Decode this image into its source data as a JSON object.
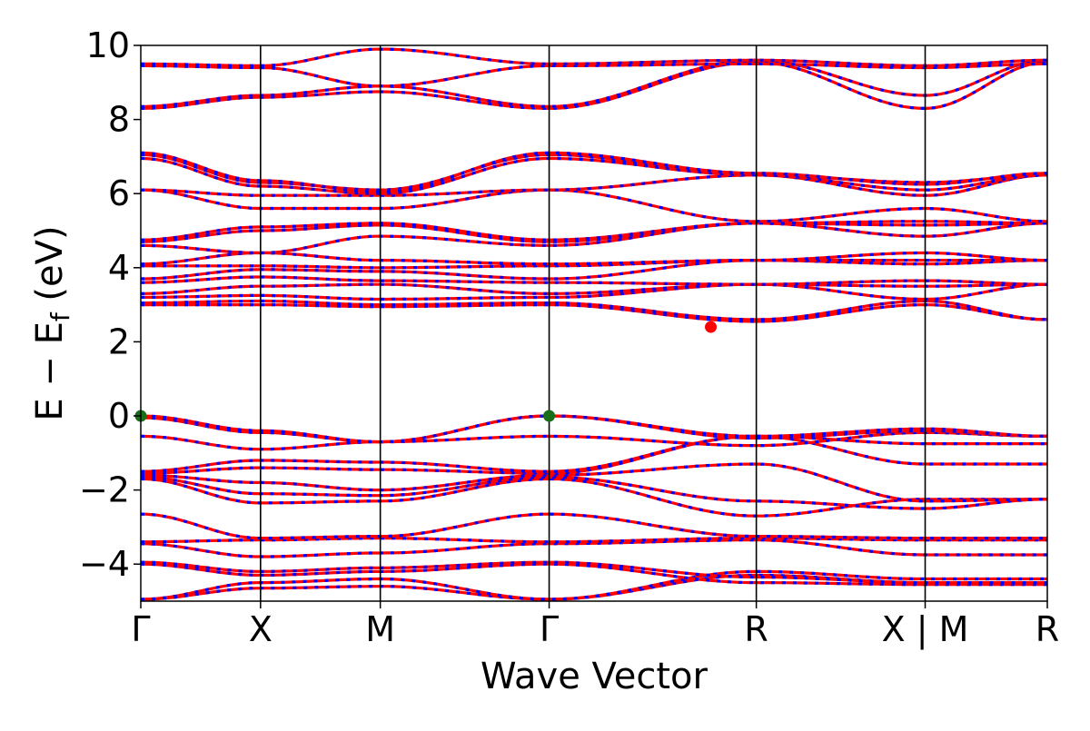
{
  "chart_data": {
    "type": "line",
    "title": "",
    "xlabel": "Wave Vector",
    "ylabel": "E − E",
    "ylabel_sub": "f",
    "ylabel_unit": " (eV)",
    "ylim": [
      -5,
      10
    ],
    "yticks": [
      -4,
      -2,
      0,
      2,
      4,
      6,
      8,
      10
    ],
    "ytick_labels": [
      "−4",
      "−2",
      "0",
      "2",
      "4",
      "6",
      "8",
      "10"
    ],
    "xlim": [
      0,
      7.57
    ],
    "kpath": [
      {
        "label": "Γ",
        "x": 0.0
      },
      {
        "label": "X",
        "x": 1.0
      },
      {
        "label": "M",
        "x": 2.0
      },
      {
        "label": "Γ",
        "x": 3.41
      },
      {
        "label": "R",
        "x": 5.14
      },
      {
        "label": "X | M",
        "x": 6.55
      },
      {
        "label": "R",
        "x": 7.57
      }
    ],
    "series_colors": {
      "spin_up": "#ff0000",
      "spin_down": "#0000ff"
    },
    "band_style": "spin-up (red, solid) overlaid with spin-down (blue, dashed); bands are degenerate",
    "bands": [
      {
        "y": [
          -4.95,
          -4.65,
          -4.6,
          -4.95,
          -4.3,
          -4.5,
          -4.5
        ]
      },
      {
        "y": [
          -4.95,
          -4.5,
          -4.4,
          -4.95,
          -4.2,
          -4.4,
          -4.4
        ]
      },
      {
        "y": [
          -4.0,
          -4.3,
          -4.2,
          -4.0,
          -4.5,
          -4.55,
          -4.55
        ]
      },
      {
        "y": [
          -3.95,
          -4.2,
          -4.1,
          -3.95,
          -4.35,
          -4.5,
          -4.5
        ]
      },
      {
        "y": [
          -3.45,
          -3.8,
          -3.7,
          -3.45,
          -3.35,
          -3.75,
          -3.75
        ]
      },
      {
        "y": [
          -3.4,
          -3.35,
          -3.3,
          -3.4,
          -3.3,
          -3.35,
          -3.35
        ]
      },
      {
        "y": [
          -2.65,
          -3.3,
          -3.25,
          -2.65,
          -3.25,
          -3.3,
          -3.3
        ]
      },
      {
        "y": [
          -1.7,
          -2.35,
          -2.3,
          -1.7,
          -2.7,
          -2.25,
          -2.25
        ]
      },
      {
        "y": [
          -1.65,
          -2.1,
          -2.15,
          -1.65,
          -2.3,
          -2.5,
          -2.25
        ]
      },
      {
        "y": [
          -1.6,
          -1.8,
          -2.0,
          -1.6,
          -1.3,
          -2.3,
          -2.25
        ]
      },
      {
        "y": [
          -1.55,
          -1.4,
          -1.45,
          -1.55,
          -0.55,
          -1.3,
          -1.3
        ]
      },
      {
        "y": [
          -1.5,
          -1.2,
          -1.25,
          -1.5,
          -0.55,
          -0.75,
          -0.75
        ]
      },
      {
        "y": [
          -0.55,
          -0.9,
          -0.7,
          -0.55,
          -0.8,
          -0.45,
          -0.55
        ]
      },
      {
        "y": [
          -0.05,
          -0.45,
          -0.7,
          0.0,
          -0.6,
          -0.4,
          -0.55
        ]
      },
      {
        "y": [
          0.0,
          -0.4,
          -0.7,
          0.0,
          -0.55,
          -0.35,
          -0.55
        ]
      },
      {
        "y": [
          3.0,
          3.0,
          2.95,
          3.0,
          2.55,
          3.0,
          2.6
        ]
      },
      {
        "y": [
          3.05,
          3.1,
          3.0,
          3.05,
          2.6,
          3.1,
          2.6
        ]
      },
      {
        "y": [
          3.2,
          3.25,
          3.15,
          3.2,
          3.55,
          3.15,
          3.55
        ]
      },
      {
        "y": [
          3.3,
          3.5,
          3.55,
          3.3,
          3.55,
          3.5,
          3.55
        ]
      },
      {
        "y": [
          3.6,
          3.75,
          3.65,
          3.6,
          3.55,
          3.65,
          3.55
        ]
      },
      {
        "y": [
          3.7,
          3.95,
          3.9,
          3.7,
          4.2,
          4.1,
          4.2
        ]
      },
      {
        "y": [
          4.05,
          4.05,
          4.0,
          4.05,
          4.2,
          4.2,
          4.2
        ]
      },
      {
        "y": [
          4.1,
          4.4,
          4.2,
          4.1,
          4.2,
          4.4,
          4.2
        ]
      },
      {
        "y": [
          4.6,
          4.4,
          4.85,
          4.6,
          5.2,
          4.85,
          5.2
        ]
      },
      {
        "y": [
          4.7,
          5.0,
          5.15,
          4.7,
          5.2,
          5.15,
          5.2
        ]
      },
      {
        "y": [
          4.75,
          5.1,
          5.2,
          4.75,
          5.2,
          5.25,
          5.2
        ]
      },
      {
        "y": [
          6.1,
          5.6,
          5.6,
          6.1,
          5.25,
          5.6,
          5.25
        ]
      },
      {
        "y": [
          6.1,
          5.95,
          5.95,
          6.1,
          6.5,
          5.95,
          6.5
        ]
      },
      {
        "y": [
          6.95,
          6.2,
          6.0,
          6.95,
          6.5,
          6.1,
          6.5
        ]
      },
      {
        "y": [
          7.05,
          6.3,
          6.1,
          7.05,
          6.5,
          6.3,
          6.5
        ]
      },
      {
        "y": [
          7.1,
          6.35,
          6.05,
          7.1,
          6.55,
          6.25,
          6.55
        ]
      },
      {
        "y": [
          8.3,
          8.6,
          8.75,
          8.3,
          9.55,
          8.3,
          9.55
        ]
      },
      {
        "y": [
          8.35,
          8.65,
          8.9,
          8.35,
          9.6,
          8.65,
          9.6
        ]
      },
      {
        "y": [
          9.45,
          9.4,
          8.9,
          9.45,
          9.5,
          9.4,
          9.5
        ]
      },
      {
        "y": [
          9.5,
          9.45,
          9.9,
          9.5,
          9.6,
          9.45,
          9.6
        ]
      }
    ],
    "markers": [
      {
        "name": "valence-band-maximum-1",
        "x": 0.0,
        "y": 0.0,
        "color": "#1a6e1a"
      },
      {
        "name": "valence-band-maximum-2",
        "x": 3.41,
        "y": 0.0,
        "color": "#1a6e1a"
      },
      {
        "name": "conduction-band-minimum",
        "x": 4.76,
        "y": 2.4,
        "color": "#ff0000"
      }
    ],
    "grid": false,
    "legend": "none"
  }
}
